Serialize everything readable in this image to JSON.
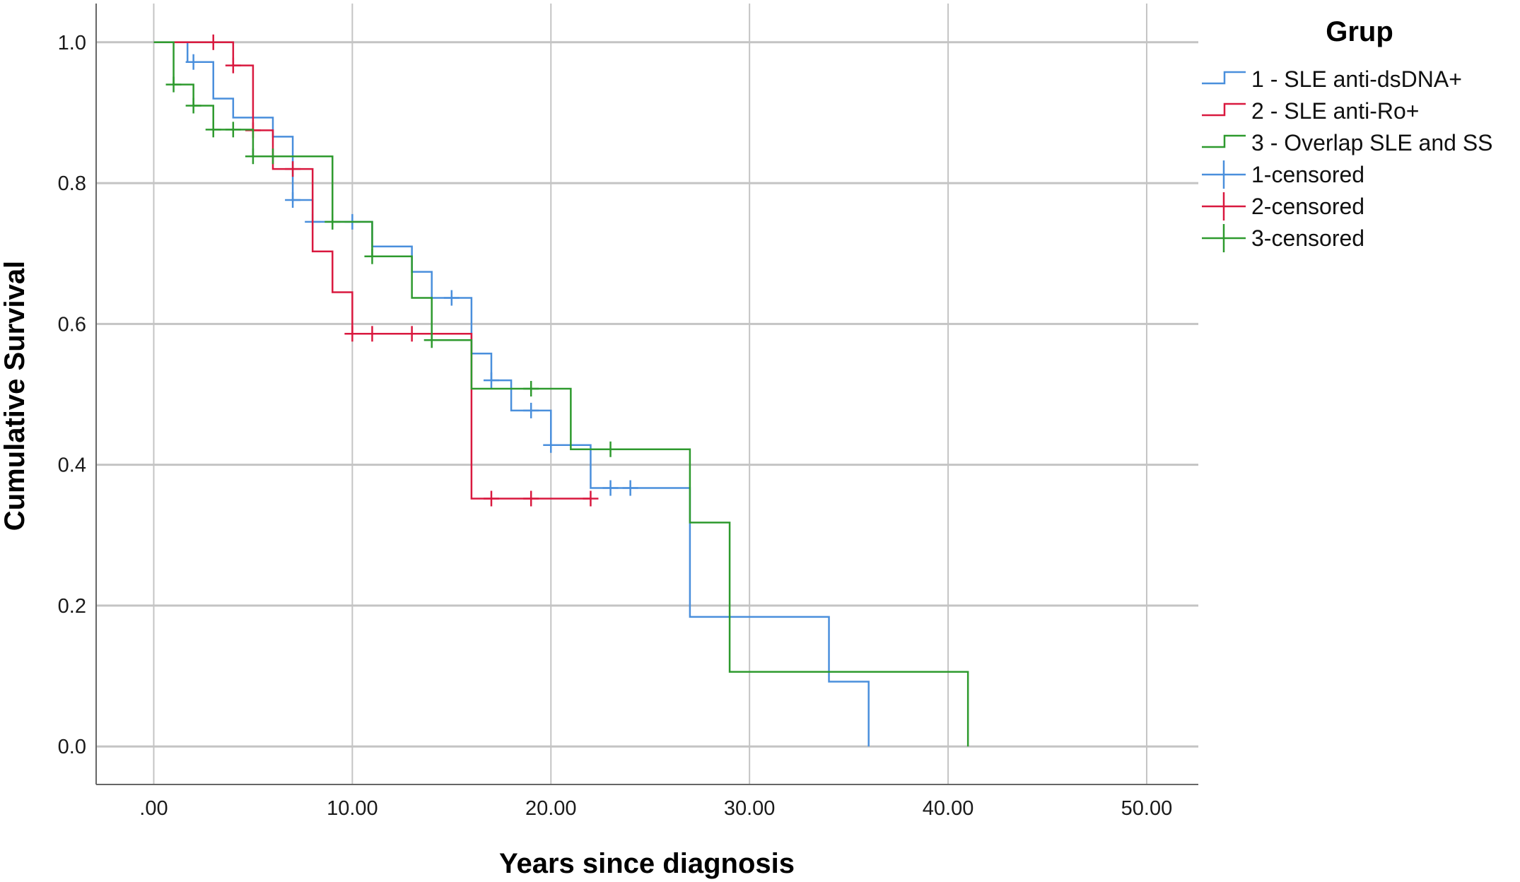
{
  "chart_data": {
    "type": "line",
    "subtype": "kaplan-meier",
    "xlabel": "Years since diagnosis",
    "ylabel": "Cumulative Survival",
    "xlim": [
      -2.9,
      52.6
    ],
    "ylim": [
      -0.054,
      1.055
    ],
    "x_ticks": [
      0,
      10,
      20,
      30,
      40,
      50
    ],
    "x_tick_labels": [
      ".00",
      "10.00",
      "20.00",
      "30.00",
      "40.00",
      "50.00"
    ],
    "y_ticks": [
      0,
      0.2,
      0.4,
      0.6,
      0.8,
      1.0
    ],
    "y_tick_labels": [
      "0.0",
      "0.2",
      "0.4",
      "0.6",
      "0.8",
      "1.0"
    ],
    "grid": true,
    "legend_title": "Grup",
    "legend_placement": "right",
    "series": [
      {
        "name": "1 - SLE anti-dsDNA+",
        "censored_name": "1-censored",
        "color": "#4a8fdc",
        "steps": [
          [
            0,
            1.0
          ],
          [
            1.7,
            0.972
          ],
          [
            3,
            0.92
          ],
          [
            4,
            0.893
          ],
          [
            6,
            0.866
          ],
          [
            7,
            0.776
          ],
          [
            8,
            0.745
          ],
          [
            11,
            0.71
          ],
          [
            13,
            0.674
          ],
          [
            14,
            0.637
          ],
          [
            16,
            0.558
          ],
          [
            17,
            0.52
          ],
          [
            18,
            0.477
          ],
          [
            20,
            0.428
          ],
          [
            22,
            0.367
          ],
          [
            27,
            0.184
          ],
          [
            34,
            0.092
          ],
          [
            36,
            0.0
          ]
        ],
        "censored": [
          [
            2,
            0.972
          ],
          [
            7,
            0.776
          ],
          [
            8,
            0.745
          ],
          [
            10,
            0.745
          ],
          [
            15,
            0.637
          ],
          [
            17,
            0.52
          ],
          [
            19,
            0.477
          ],
          [
            20,
            0.428
          ],
          [
            23,
            0.367
          ],
          [
            24,
            0.367
          ]
        ]
      },
      {
        "name": "2 - SLE anti-Ro+",
        "censored_name": "2-censored",
        "color": "#d9193f",
        "steps": [
          [
            0,
            1.0
          ],
          [
            4,
            0.967
          ],
          [
            5,
            0.875
          ],
          [
            6,
            0.82
          ],
          [
            8,
            0.703
          ],
          [
            9,
            0.645
          ],
          [
            10,
            0.586
          ],
          [
            16,
            0.352
          ]
        ],
        "end_x": 22,
        "censored": [
          [
            3,
            1.0
          ],
          [
            4,
            0.967
          ],
          [
            5,
            0.875
          ],
          [
            7,
            0.82
          ],
          [
            10,
            0.586
          ],
          [
            11,
            0.586
          ],
          [
            13,
            0.586
          ],
          [
            17,
            0.352
          ],
          [
            19,
            0.352
          ],
          [
            22,
            0.352
          ]
        ]
      },
      {
        "name": "3 - Overlap SLE and SS",
        "censored_name": "3-censored",
        "color": "#2e9a2e",
        "steps": [
          [
            0,
            1.0
          ],
          [
            1,
            0.94
          ],
          [
            2,
            0.91
          ],
          [
            3,
            0.876
          ],
          [
            5,
            0.838
          ],
          [
            9,
            0.745
          ],
          [
            11,
            0.696
          ],
          [
            13,
            0.637
          ],
          [
            14,
            0.577
          ],
          [
            16,
            0.508
          ],
          [
            21,
            0.422
          ],
          [
            27,
            0.318
          ],
          [
            29,
            0.106
          ],
          [
            41,
            0.0
          ]
        ],
        "censored": [
          [
            1,
            0.94
          ],
          [
            2,
            0.91
          ],
          [
            3,
            0.876
          ],
          [
            4,
            0.876
          ],
          [
            5,
            0.838
          ],
          [
            6,
            0.838
          ],
          [
            9,
            0.745
          ],
          [
            11,
            0.696
          ],
          [
            14,
            0.577
          ],
          [
            19,
            0.508
          ],
          [
            23,
            0.422
          ]
        ]
      }
    ]
  }
}
